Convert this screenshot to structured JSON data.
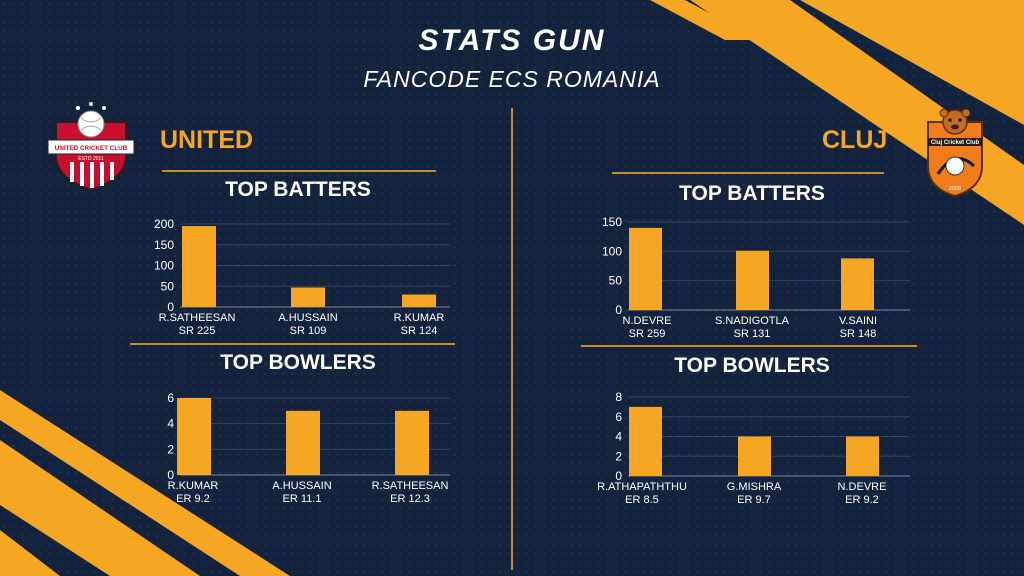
{
  "header": {
    "title": "STATS GUN",
    "subtitle": "FANCODE ECS ROMANIA"
  },
  "teams": {
    "left": {
      "name": "UNITED",
      "logo_text": "UNITED CRICKET CLUB",
      "logo_estd": "ESTD 2011"
    },
    "right": {
      "name": "CLUJ",
      "logo_text": "Cluj Cricket Club",
      "logo_year": "2009"
    }
  },
  "colors": {
    "background": "#13223d",
    "accent": "#f5a623",
    "text": "#ffffff"
  },
  "chart_data": [
    {
      "id": "united-batters",
      "type": "bar",
      "title": "TOP BATTERS",
      "categories": [
        "R.SATHEESAN",
        "A.HUSSAIN",
        "R.KUMAR"
      ],
      "sublabels": [
        "SR 225",
        "SR 109",
        "SR 124"
      ],
      "values": [
        195,
        47,
        30
      ],
      "ylim": [
        0,
        200
      ],
      "yticks": [
        0,
        50,
        100,
        150,
        200
      ],
      "grid": true
    },
    {
      "id": "united-bowlers",
      "type": "bar",
      "title": "TOP BOWLERS",
      "categories": [
        "R.KUMAR",
        "A.HUSSAIN",
        "R.SATHEESAN"
      ],
      "sublabels": [
        "ER 9.2",
        "ER 11.1",
        "ER 12.3"
      ],
      "values": [
        6,
        5,
        5
      ],
      "ylim": [
        0,
        6
      ],
      "yticks": [
        0,
        2,
        4,
        6
      ],
      "grid": true
    },
    {
      "id": "cluj-batters",
      "type": "bar",
      "title": "TOP BATTERS",
      "categories": [
        "N.DEVRE",
        "S.NADIGOTLA",
        "V.SAINI"
      ],
      "sublabels": [
        "SR 259",
        "SR 131",
        "SR 148"
      ],
      "values": [
        140,
        101,
        88
      ],
      "ylim": [
        0,
        150
      ],
      "yticks": [
        0,
        50,
        100,
        150
      ],
      "grid": true
    },
    {
      "id": "cluj-bowlers",
      "type": "bar",
      "title": "TOP BOWLERS",
      "categories": [
        "R.ATHAPATHTHU",
        "G.MISHRA",
        "N.DEVRE"
      ],
      "sublabels": [
        "ER 8.5",
        "ER 9.7",
        "ER 9.2"
      ],
      "values": [
        7,
        4,
        4
      ],
      "ylim": [
        0,
        8
      ],
      "yticks": [
        0,
        2,
        4,
        6,
        8
      ],
      "grid": true
    }
  ]
}
